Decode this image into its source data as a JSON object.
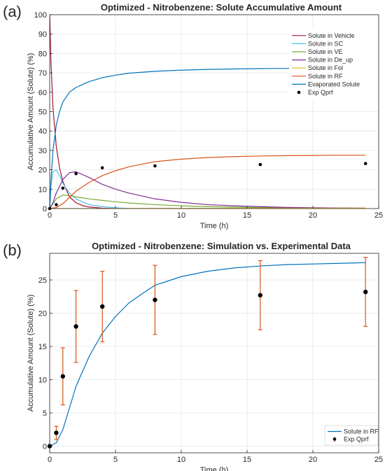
{
  "figure": {
    "panel_a_label": "(a)",
    "panel_b_label": "(b)"
  },
  "chart_data": [
    {
      "type": "line",
      "title": "Optimized - Nitrobenzene: Solute Accumulative Amount",
      "xlabel": "Time (h)",
      "ylabel": "Accumulative Amount (Solute) (%)",
      "xlim": [
        0,
        25
      ],
      "ylim": [
        0,
        100
      ],
      "xticks": [
        0,
        5,
        10,
        15,
        20,
        25
      ],
      "yticks": [
        0,
        10,
        20,
        30,
        40,
        50,
        60,
        70,
        80,
        90,
        100
      ],
      "grid": true,
      "legend_position": "top-right",
      "series": [
        {
          "name": "Solute in Vehicle",
          "color": "#A2142F",
          "x": [
            0,
            0.1,
            0.25,
            0.5,
            0.75,
            1,
            1.5,
            2,
            2.5,
            3,
            4,
            5
          ],
          "y": [
            100,
            75,
            52,
            32,
            21,
            14,
            6,
            3,
            1.5,
            0.8,
            0.2,
            0
          ]
        },
        {
          "name": "Solute in SC",
          "color": "#4DBEEE",
          "x": [
            0,
            0.1,
            0.25,
            0.5,
            0.75,
            1,
            1.5,
            2,
            3,
            4,
            5,
            6
          ],
          "y": [
            0,
            12,
            19,
            20,
            17,
            13,
            8,
            5,
            2,
            1,
            0.4,
            0
          ]
        },
        {
          "name": "Solute in VE",
          "color": "#77AC30",
          "x": [
            0,
            0.25,
            0.5,
            1,
            1.5,
            2,
            3,
            4,
            5,
            6,
            8,
            10,
            12,
            15,
            18,
            21,
            24
          ],
          "y": [
            0,
            2.5,
            5,
            7,
            6.7,
            6,
            5,
            4.2,
            3.5,
            2.9,
            2,
            1.4,
            1,
            0.6,
            0.4,
            0.25,
            0.2
          ]
        },
        {
          "name": "Solute in De_up",
          "color": "#7E2F8E",
          "x": [
            0,
            0.25,
            0.5,
            1,
            1.5,
            2,
            3,
            4,
            5,
            6,
            8,
            10,
            12,
            14,
            16,
            18,
            20,
            22,
            24
          ],
          "y": [
            0,
            3,
            8,
            15,
            18.5,
            19,
            16,
            12.5,
            10,
            8,
            5,
            3.2,
            2,
            1.4,
            1,
            0.6,
            0.4,
            0.3,
            0.2
          ]
        },
        {
          "name": "Solute in Fol",
          "color": "#EDB120",
          "x": [
            0,
            24
          ],
          "y": [
            0,
            0.2
          ]
        },
        {
          "name": "Solute in RF",
          "color": "#D95319",
          "x": [
            0,
            0.5,
            1,
            2,
            3,
            4,
            5,
            6,
            8,
            10,
            12,
            14,
            16,
            18,
            20,
            22,
            24
          ],
          "y": [
            0,
            0.5,
            2.5,
            9,
            13.5,
            17,
            19.5,
            21.5,
            24.2,
            25.5,
            26.3,
            26.8,
            27.1,
            27.3,
            27.4,
            27.5,
            27.5
          ]
        },
        {
          "name": "Evaporated Solute",
          "color": "#0072BD",
          "x": [
            0,
            0.1,
            0.25,
            0.5,
            0.75,
            1,
            1.5,
            2,
            2.5,
            3,
            4,
            5,
            6,
            8,
            10,
            12,
            16,
            20,
            24
          ],
          "y": [
            0,
            15,
            30,
            43,
            50,
            55,
            60,
            62.5,
            64,
            65.5,
            67.5,
            68.8,
            69.8,
            70.8,
            71.4,
            71.8,
            72.2,
            72.4,
            72.5
          ]
        },
        {
          "name": "Exp Qprf",
          "color": "#000000",
          "marker": "dot",
          "x": [
            0,
            0.5,
            1,
            2,
            4,
            8,
            16,
            24
          ],
          "y": [
            0,
            2,
            10.5,
            18,
            21,
            22,
            22.7,
            23.2
          ]
        }
      ]
    },
    {
      "type": "line",
      "title": "Optimized - Nitrobenzene: Simulation vs. Experimental Data",
      "xlabel": "Time (h)",
      "ylabel": "Accumulative Amount (Solute) (%)",
      "xlim": [
        0,
        25
      ],
      "ylim": [
        -1,
        29
      ],
      "xticks": [
        0,
        5,
        10,
        15,
        20,
        25
      ],
      "yticks": [
        0,
        5,
        10,
        15,
        20,
        25
      ],
      "grid": true,
      "legend_position": "bottom-right",
      "series": [
        {
          "name": "Solute in RF",
          "color": "#0072BD",
          "x": [
            0,
            0.5,
            1,
            2,
            3,
            4,
            5,
            6,
            7,
            8,
            10,
            12,
            14,
            16,
            18,
            20,
            22,
            24
          ],
          "y": [
            0,
            0.5,
            2.5,
            9,
            13.5,
            17,
            19.5,
            21.5,
            22.9,
            24.2,
            25.5,
            26.3,
            26.8,
            27.1,
            27.3,
            27.4,
            27.5,
            27.6
          ]
        },
        {
          "name": "Exp Qprf",
          "color": "#000000",
          "errorbar_color": "#D95319",
          "marker": "dot",
          "x": [
            0,
            0.5,
            1,
            2,
            4,
            8,
            16,
            24
          ],
          "y": [
            0,
            2,
            10.5,
            18,
            21,
            22,
            22.7,
            23.2
          ],
          "error": [
            0,
            1,
            4.3,
            5.4,
            5.3,
            5.2,
            5.2,
            5.2
          ]
        }
      ]
    }
  ]
}
